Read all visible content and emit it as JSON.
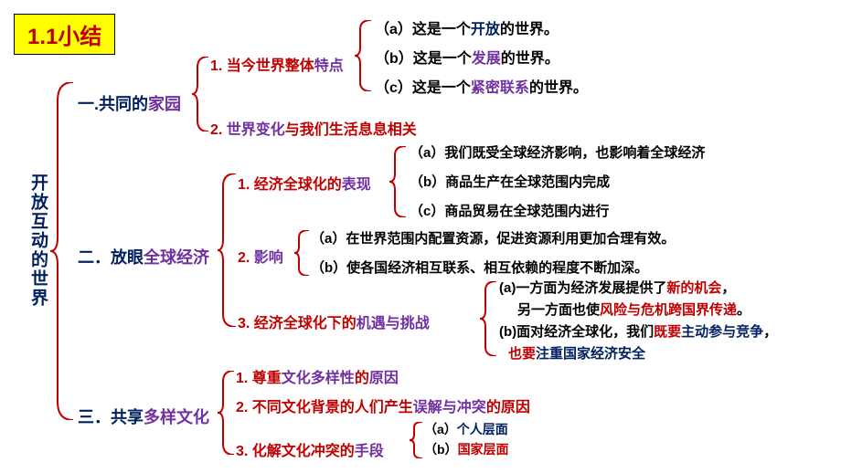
{
  "colors": {
    "red": "#c00000",
    "blue": "#002060",
    "purple": "#7030a0",
    "black": "#000000",
    "yellow_bg": "#ffff00"
  },
  "title": "1.1小结",
  "root": {
    "text": "开放互动的世界",
    "color": "#002060"
  },
  "branches": [
    {
      "label_pre": "一.共同的",
      "label_post": "家园",
      "children": [
        {
          "num": "1.",
          "t1": " 当今世界整体",
          "t2": "特点",
          "items": [
            {
              "p": "（a）这是一个",
              "k": "开放",
              "s": "的世界。",
              "kc": "#002060"
            },
            {
              "p": "（b）这是一个",
              "k": "发展",
              "s": "的世界。",
              "kc": "#7030a0"
            },
            {
              "p": "（c）这是一个",
              "k": "紧密联系",
              "s": "的世界。",
              "kc": "#7030a0"
            }
          ]
        },
        {
          "num": "2.",
          "t1": " 世界变化",
          "t2": "与我们生活息息相关",
          "items": []
        }
      ]
    },
    {
      "label_pre": "二．放眼",
      "label_post": "全球经济",
      "children": [
        {
          "num": "1.",
          "t1": " 经济全球化的",
          "t2": "表现",
          "items": [
            {
              "p": "（a）我们既受全球经济影响，也影响着全球经济",
              "k": "",
              "s": ""
            },
            {
              "p": "（b）商品生产在全球范围内完成",
              "k": "",
              "s": ""
            },
            {
              "p": "（c）商品贸易在全球范围内进行",
              "k": "",
              "s": ""
            }
          ]
        },
        {
          "num": "2.",
          "t1": " 影响",
          "items": [
            {
              "p": "（a）在世界范围内配置资源，促进资源利用更加合理有效。",
              "k": "",
              "s": ""
            },
            {
              "p": "（b）使各国经济相互联系、相互依赖的程度不断加深。",
              "k": "",
              "s": ""
            }
          ]
        },
        {
          "num": "3.",
          "t1": " 经济全球化下的",
          "t2": "机遇与挑战",
          "items_rich": [
            [
              {
                "t": "(a)一方面为经济发展提供了",
                "c": "#000"
              },
              {
                "t": "新的机会",
                "c": "#c00000"
              },
              {
                "t": "，",
                "c": "#000"
              }
            ],
            [
              {
                "t": "   另一方面也使",
                "c": "#000"
              },
              {
                "t": "风险与危机跨国界传递",
                "c": "#c00000"
              },
              {
                "t": "。",
                "c": "#000"
              }
            ],
            [
              {
                "t": "(b)面对经济全球化，我们",
                "c": "#000"
              },
              {
                "t": "既要",
                "c": "#c00000"
              },
              {
                "t": "主动参与竞争",
                "c": "#002060"
              },
              {
                "t": "，",
                "c": "#000"
              }
            ],
            [
              {
                "t": "也要",
                "c": "#c00000"
              },
              {
                "t": "注重国家经济安全",
                "c": "#002060"
              }
            ]
          ]
        }
      ]
    },
    {
      "label_pre": "三．共享",
      "label_post": "多样文化",
      "children": [
        {
          "num": "1.",
          "t1": " 尊重",
          "t2": "文化多样性",
          "t3": "的",
          "t4": "原因"
        },
        {
          "num": "2.",
          "t1": " 不同文化背景的人们产生",
          "t2": "误解与冲突",
          "t3": "的原因"
        },
        {
          "num": "3.",
          "t1": " 化解文化冲突的",
          "t2": "手段",
          "items": [
            {
              "p": "（a）",
              "k": "个人层面",
              "kc": "#002060"
            },
            {
              "p": "（b）",
              "k": "国家层面",
              "kc": "#c00000"
            }
          ]
        }
      ]
    }
  ]
}
